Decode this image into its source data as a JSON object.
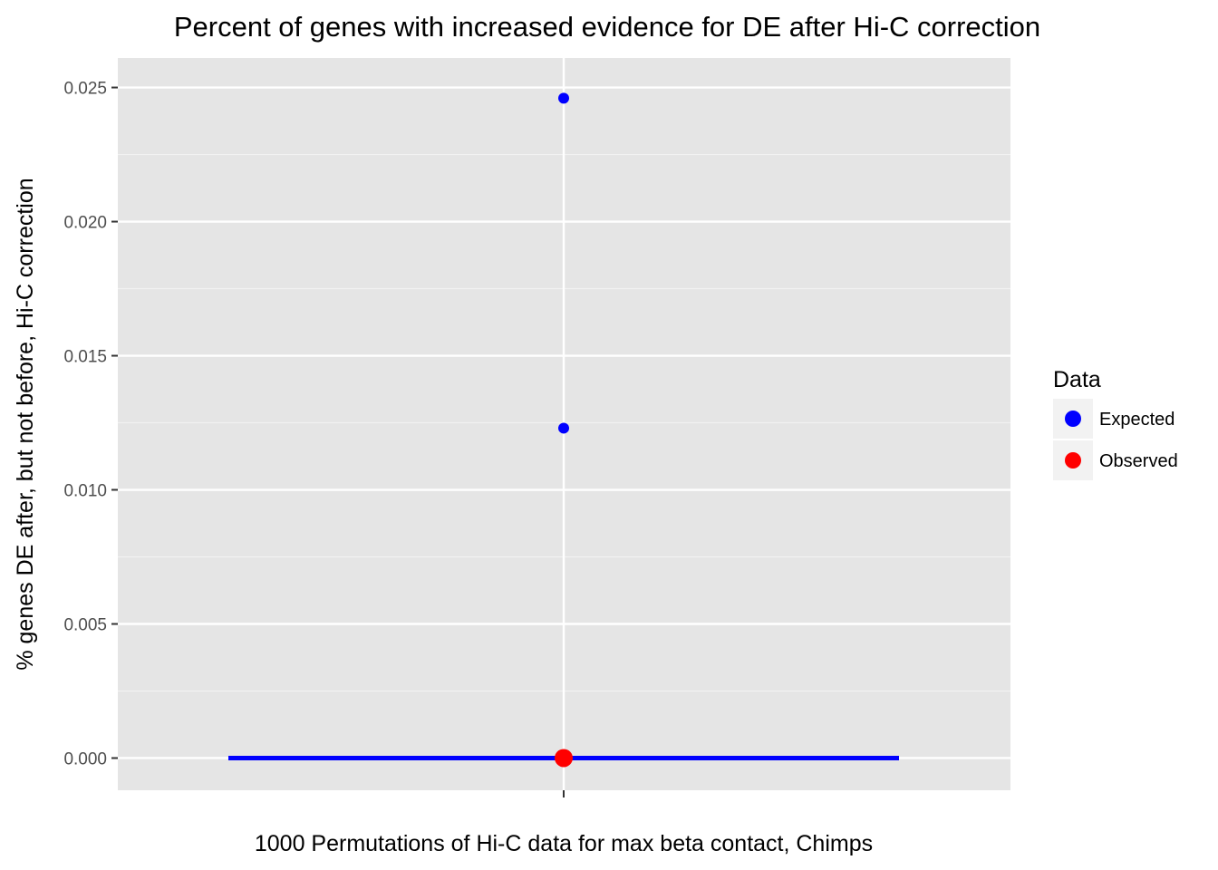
{
  "chart_data": {
    "type": "scatter",
    "title": "Percent of genes with increased evidence for DE after Hi-C correction",
    "xlabel": "1000 Permutations of Hi-C data for max beta contact, Chimps",
    "ylabel": "% genes DE after, but not before, Hi-C correction",
    "ylim": [
      -0.0012,
      0.0261
    ],
    "yticks": [
      {
        "value": 0.0,
        "label": "0.000"
      },
      {
        "value": 0.005,
        "label": "0.005"
      },
      {
        "value": 0.01,
        "label": "0.010"
      },
      {
        "value": 0.015,
        "label": "0.015"
      },
      {
        "value": 0.02,
        "label": "0.020"
      },
      {
        "value": 0.025,
        "label": "0.025"
      }
    ],
    "grid": true,
    "legend": {
      "title": "Data",
      "placement": "right",
      "entries": [
        {
          "name": "Expected",
          "color": "#0000ff"
        },
        {
          "name": "Observed",
          "color": "#ff0000"
        }
      ]
    },
    "series": [
      {
        "name": "Expected",
        "color": "#0000ff",
        "points": [
          {
            "x": 0,
            "y": 0.0246
          },
          {
            "x": 0,
            "y": 0.0123
          },
          {
            "x": 0,
            "y": 0.0
          }
        ],
        "baseline": {
          "y": 0.0,
          "x_from": -0.5,
          "x_to": 0.5
        }
      },
      {
        "name": "Observed",
        "color": "#ff0000",
        "points": [
          {
            "x": 0,
            "y": 0.0
          }
        ]
      }
    ],
    "colors": {
      "panel_background": "#e5e5e5",
      "grid": "#ffffff",
      "legend_key_background": "#f2f2f2"
    }
  }
}
